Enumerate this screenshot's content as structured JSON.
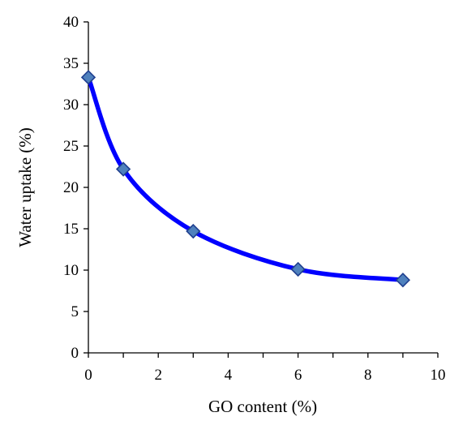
{
  "chart_data": {
    "type": "line",
    "title": "",
    "xlabel": "GO content  (%)",
    "ylabel": "Water uptake (%)",
    "xlim": [
      0,
      10
    ],
    "ylim": [
      0,
      40
    ],
    "x_ticks": [
      "0",
      "2",
      "4",
      "6",
      "8",
      "10"
    ],
    "y_ticks": [
      "0",
      "5",
      "10",
      "15",
      "20",
      "25",
      "30",
      "35",
      "40"
    ],
    "grid": false,
    "smooth": true,
    "series": [
      {
        "x": [
          0,
          1,
          3,
          6,
          9
        ],
        "values": [
          33.3,
          22.2,
          14.7,
          10.1,
          8.8
        ],
        "line_color": "#0000ff",
        "marker": "diamond",
        "marker_fill": "#4f81bd",
        "marker_edge": "#1f3f8f"
      }
    ]
  }
}
